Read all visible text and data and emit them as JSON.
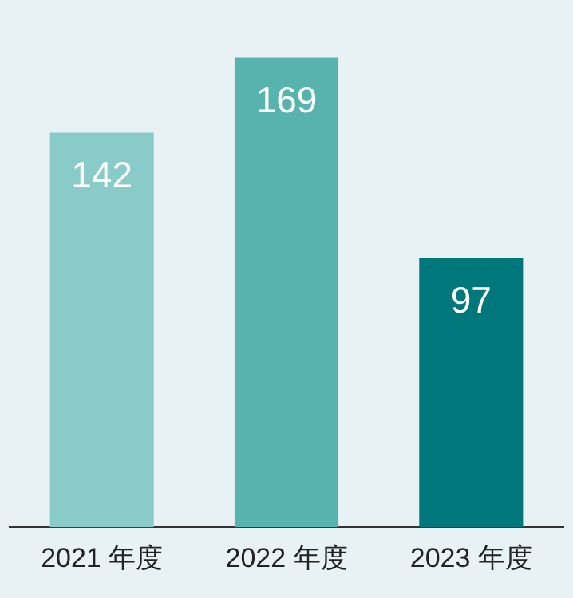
{
  "chart_data": {
    "type": "bar",
    "categories": [
      "2021 年度",
      "2022 年度",
      "2023 年度"
    ],
    "values": [
      142,
      169,
      97
    ],
    "colors": [
      "#88cbc8",
      "#56b3ad",
      "#00777a"
    ],
    "data_labels": true,
    "grid": false,
    "legend": false
  }
}
